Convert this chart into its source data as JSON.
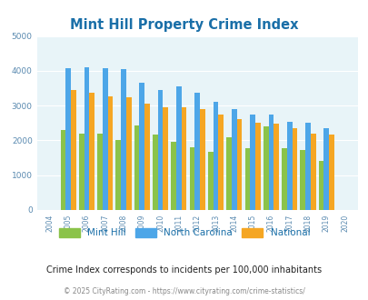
{
  "title": "Mint Hill Property Crime Index",
  "years": [
    "2004",
    "2005",
    "2006",
    "2007",
    "2008",
    "2009",
    "2010",
    "2011",
    "2012",
    "2013",
    "2014",
    "2015",
    "2016",
    "2017",
    "2018",
    "2019",
    "2020"
  ],
  "mint_hill": [
    0,
    2300,
    2200,
    2200,
    2020,
    2420,
    2160,
    1950,
    1800,
    1670,
    2080,
    1780,
    2400,
    1780,
    1720,
    1400,
    0
  ],
  "north_carolina": [
    0,
    4080,
    4100,
    4080,
    4040,
    3660,
    3450,
    3540,
    3380,
    3120,
    2900,
    2740,
    2740,
    2540,
    2520,
    2360,
    0
  ],
  "national": [
    0,
    3450,
    3360,
    3260,
    3240,
    3060,
    2960,
    2940,
    2900,
    2730,
    2620,
    2500,
    2480,
    2340,
    2200,
    2160,
    0
  ],
  "mint_hill_color": "#8bc34a",
  "nc_color": "#4da6e8",
  "national_color": "#f5a623",
  "bg_color": "#e8f4f8",
  "title_color": "#1a6fa8",
  "ylim": [
    0,
    5000
  ],
  "yticks": [
    0,
    1000,
    2000,
    3000,
    4000,
    5000
  ],
  "footer_text": "Crime Index corresponds to incidents per 100,000 inhabitants",
  "copyright_text": "© 2025 CityRating.com - https://www.cityrating.com/crime-statistics/",
  "legend_labels": [
    "Mint Hill",
    "North Carolina",
    "National"
  ]
}
